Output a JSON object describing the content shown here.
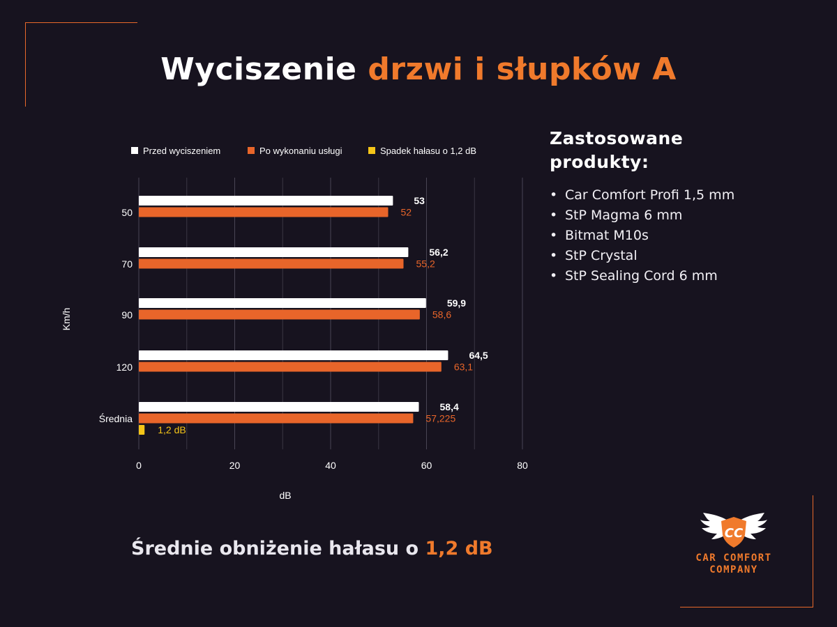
{
  "header": {
    "title_part1": "Wyciszenie",
    "title_part2": "drzwi i słupków A"
  },
  "colors": {
    "background": "#17131f",
    "accent": "#f07a2c",
    "before": "#ffffff",
    "after": "#e8652a",
    "reduction": "#f5c518"
  },
  "chart_data": {
    "type": "bar",
    "orientation": "horizontal",
    "title": "",
    "xlabel": "dB",
    "ylabel": "Km/h",
    "xlim": [
      0,
      80
    ],
    "xticks": [
      "0",
      "20",
      "40",
      "60",
      "80"
    ],
    "categories": [
      "50",
      "70",
      "90",
      "120",
      "Średnia"
    ],
    "legend_position": "top",
    "grid": true,
    "series": [
      {
        "name": "Przed wyciszeniem",
        "values": [
          53,
          56.2,
          59.9,
          64.5,
          58.4
        ],
        "labels": [
          "53",
          "56,2",
          "59,9",
          "64,5",
          "58,4"
        ]
      },
      {
        "name": "Po wykonaniu usługi",
        "values": [
          52,
          55.2,
          58.6,
          63.1,
          57.225
        ],
        "labels": [
          "52",
          "55,2",
          "58,6",
          "63,1",
          "57,225"
        ]
      },
      {
        "name": "Spadek hałasu o 1,2 dB",
        "values": [
          null,
          null,
          null,
          null,
          1.2
        ],
        "labels": [
          "",
          "",
          "",
          "",
          "1,2 dB"
        ]
      }
    ]
  },
  "products": {
    "heading_line1": "Zastosowane",
    "heading_line2": "produkty:",
    "items": [
      "Car Comfort Profi 1,5 mm",
      "StP Magma 6 mm",
      "Bitmat M10s",
      "StP Crystal",
      "StP Sealing Cord 6 mm"
    ]
  },
  "summary": {
    "text": "Średnie obniżenie hałasu o",
    "value": "1,2 dB"
  },
  "logo": {
    "initials": "CC",
    "line1": "CAR COMFORT",
    "line2": "COMPANY"
  }
}
